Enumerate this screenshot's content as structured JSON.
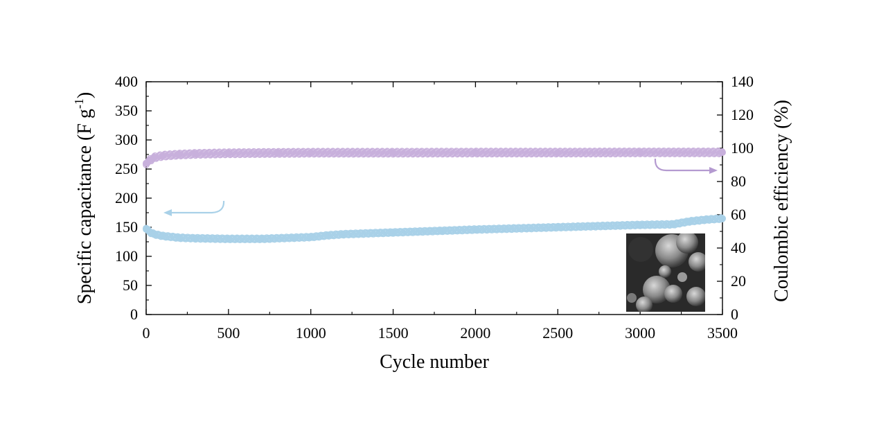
{
  "chart_data": {
    "type": "scatter",
    "xlabel": "Cycle number",
    "ylabel_left": "Specific capacitance (F g",
    "ylabel_left_sup": "-1",
    "ylabel_left_close": ")",
    "ylabel_right": "Coulombic efficiency  (%)",
    "xlim": [
      0,
      3500
    ],
    "ylim_left": [
      0,
      400
    ],
    "ylim_right": [
      0,
      140
    ],
    "xticks": [
      "0",
      "500",
      "1000",
      "1500",
      "2000",
      "2500",
      "3000",
      "3500"
    ],
    "yticks_left": [
      "0",
      "50",
      "100",
      "150",
      "200",
      "250",
      "300",
      "350",
      "400"
    ],
    "yticks_right": [
      "0",
      "20",
      "40",
      "60",
      "80",
      "100",
      "120",
      "140"
    ],
    "grid": false,
    "series": [
      {
        "axis": "left",
        "color": "#a9d1e8",
        "x": [
          0,
          25,
          50,
          100,
          200,
          300,
          500,
          700,
          900,
          1000,
          1100,
          1200,
          1500,
          1800,
          2000,
          2500,
          3000,
          3200,
          3300,
          3400,
          3500
        ],
        "y": [
          148,
          141,
          138,
          135,
          132,
          131,
          130,
          130,
          132,
          133,
          136,
          138,
          141,
          144,
          146,
          150,
          154,
          155,
          160,
          163,
          165
        ]
      },
      {
        "axis": "right",
        "color": "#c8b0dc",
        "x": [
          0,
          25,
          50,
          100,
          200,
          300,
          500,
          800,
          1000,
          1500,
          2000,
          2500,
          3000,
          3500
        ],
        "y": [
          91,
          93,
          94.5,
          95.5,
          96.2,
          96.6,
          97,
          97.2,
          97.3,
          97.3,
          97.4,
          97.4,
          97.5,
          97.5
        ]
      }
    ],
    "arrows": [
      {
        "target_axis": "left",
        "color": "#a9d1e8"
      },
      {
        "target_axis": "right",
        "color": "#b49ad0"
      }
    ],
    "inset": {
      "kind": "sem-micrograph"
    }
  }
}
